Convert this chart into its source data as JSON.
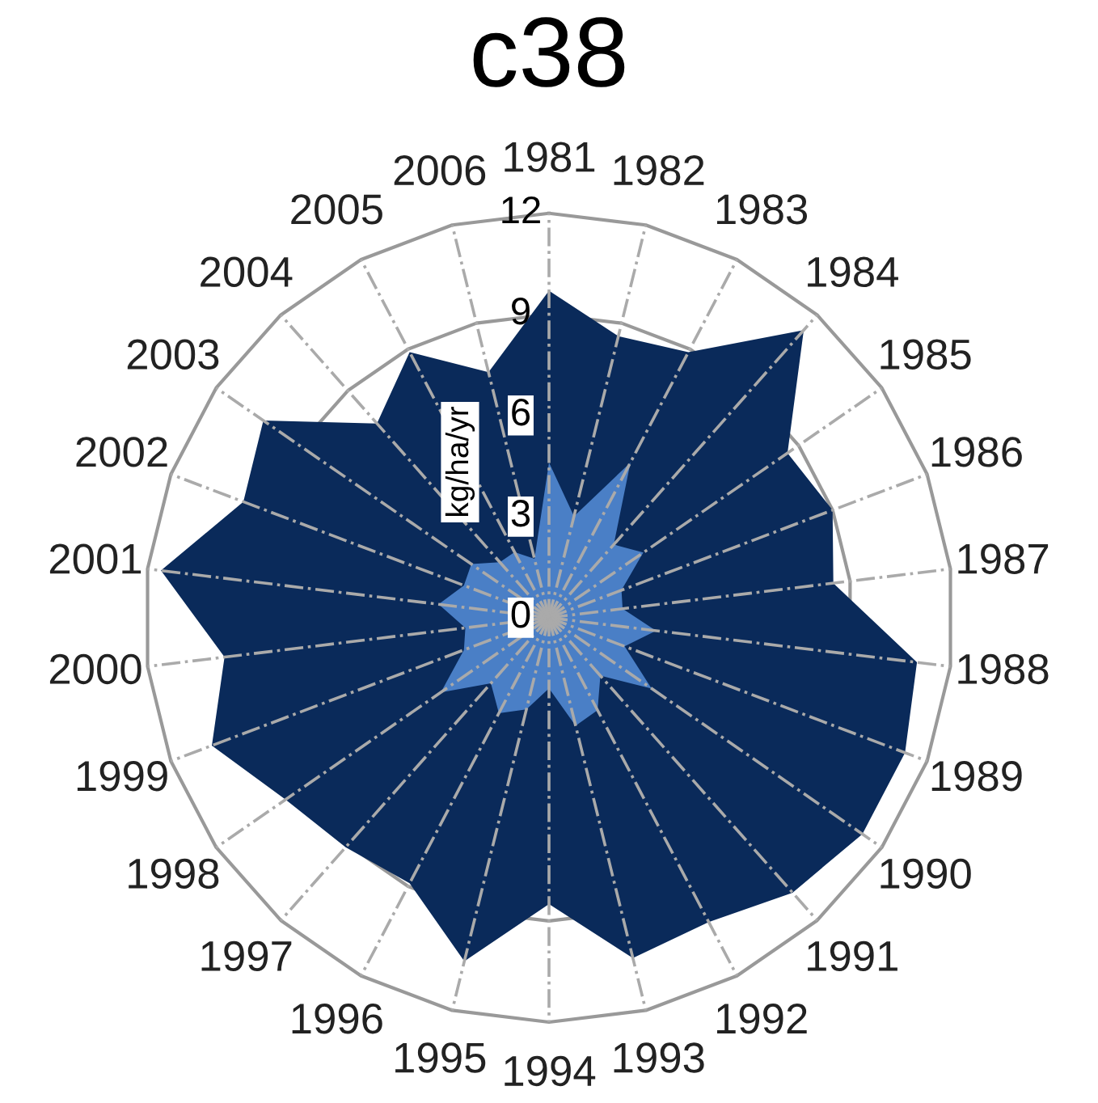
{
  "chart_data": {
    "type": "radar",
    "title": "c38",
    "ylabel": "kg/ha/yr",
    "categories": [
      "1981",
      "1982",
      "1983",
      "1984",
      "1985",
      "1986",
      "1987",
      "1988",
      "1989",
      "1990",
      "1991",
      "1992",
      "1993",
      "1994",
      "1995",
      "1996",
      "1997",
      "1998",
      "1999",
      "2000",
      "2001",
      "2002",
      "2003",
      "2004",
      "2005",
      "2006"
    ],
    "ylim": [
      0,
      12
    ],
    "yticks": [
      0,
      3,
      6,
      9,
      12
    ],
    "grid": true,
    "legend": false,
    "series": [
      {
        "color": "#0a2a5a",
        "values": [
          9.7,
          8.6,
          8.9,
          11.4,
          8.6,
          9.0,
          8.5,
          11.0,
          11.3,
          11.3,
          10.9,
          10.2,
          10.4,
          8.5,
          10.5,
          8.9,
          9.1,
          9.5,
          10.7,
          9.7,
          11.6,
          9.7,
          10.3,
          7.7,
          8.9,
          7.5
        ]
      },
      {
        "color": "#4a7fc6",
        "values": [
          4.6,
          3.1,
          5.2,
          2.9,
          3.4,
          2.3,
          2.2,
          3.2,
          2.4,
          3.7,
          2.3,
          3.1,
          3.3,
          2.1,
          2.8,
          3.2,
          2.6,
          3.9,
          2.7,
          2.5,
          3.3,
          2.7,
          2.8,
          2.2,
          2.2,
          1.8
        ]
      }
    ]
  }
}
